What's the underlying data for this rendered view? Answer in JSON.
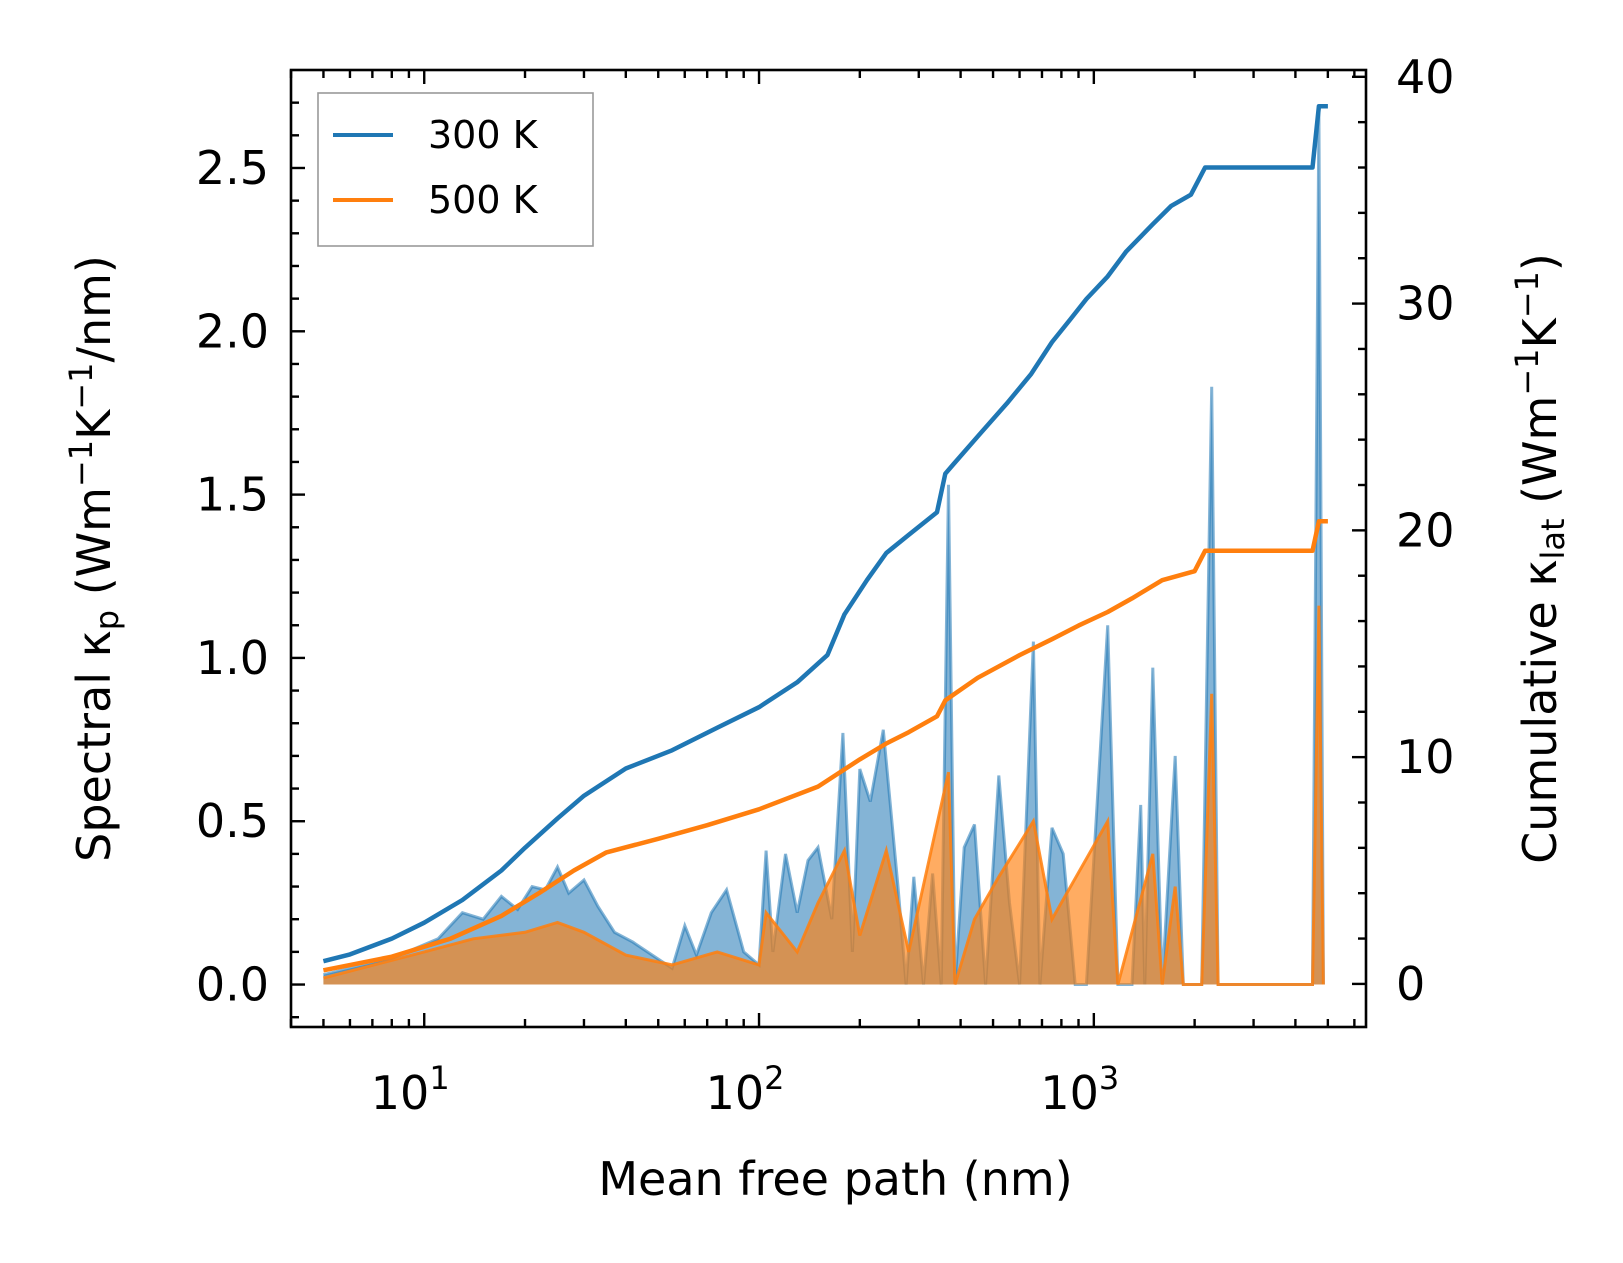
{
  "chart_data": {
    "type": "line",
    "x_scale": "log",
    "xlim": [
      4,
      6500
    ],
    "ylim_left": [
      -0.13,
      2.8
    ],
    "ylim_right": [
      -1.9,
      40.3
    ],
    "xlabel": "Mean free path (nm)",
    "ylabel_left": {
      "pre": "Spectral κ",
      "sub": "p",
      "mid": " (Wm",
      "sup1": "−1",
      "k": "K",
      "sup2": "−1",
      "post": "/nm)"
    },
    "ylabel_right": {
      "pre": "Cumulative κ",
      "sub": "lat",
      "mid": " (Wm",
      "sup1": "−1",
      "k": "K",
      "sup2": "−1",
      "post": ")"
    },
    "x_ticks": [
      {
        "value": 10,
        "base": "10",
        "exp": "1"
      },
      {
        "value": 100,
        "base": "10",
        "exp": "2"
      },
      {
        "value": 1000,
        "base": "10",
        "exp": "3"
      }
    ],
    "y_ticks_left": [
      "0.0",
      "0.5",
      "1.0",
      "1.5",
      "2.0",
      "2.5"
    ],
    "y_ticks_right": [
      "0",
      "10",
      "20",
      "30",
      "40"
    ],
    "legend": {
      "position": "upper-left",
      "entries": [
        "300 K",
        "500 K"
      ]
    },
    "series": [
      {
        "name": "300 K",
        "color": "#1f77b4",
        "cumulative": [
          [
            5,
            1.0
          ],
          [
            6,
            1.3
          ],
          [
            8,
            2.0
          ],
          [
            10,
            2.7
          ],
          [
            13,
            3.7
          ],
          [
            17,
            5.0
          ],
          [
            20,
            6.0
          ],
          [
            25,
            7.3
          ],
          [
            30,
            8.3
          ],
          [
            40,
            9.5
          ],
          [
            55,
            10.3
          ],
          [
            75,
            11.3
          ],
          [
            100,
            12.2
          ],
          [
            130,
            13.3
          ],
          [
            160,
            14.5
          ],
          [
            180,
            16.3
          ],
          [
            210,
            17.8
          ],
          [
            240,
            19.0
          ],
          [
            280,
            19.8
          ],
          [
            340,
            20.8
          ],
          [
            360,
            22.5
          ],
          [
            380,
            22.9
          ],
          [
            460,
            24.3
          ],
          [
            550,
            25.6
          ],
          [
            650,
            26.9
          ],
          [
            750,
            28.3
          ],
          [
            850,
            29.3
          ],
          [
            950,
            30.2
          ],
          [
            1100,
            31.2
          ],
          [
            1250,
            32.3
          ],
          [
            1500,
            33.5
          ],
          [
            1700,
            34.3
          ],
          [
            1950,
            34.8
          ],
          [
            2150,
            36.0
          ],
          [
            2500,
            36.0
          ],
          [
            4500,
            36.0
          ],
          [
            4700,
            38.7
          ],
          [
            5000,
            38.7
          ]
        ],
        "spectral": [
          [
            5,
            0.03
          ],
          [
            8,
            0.08
          ],
          [
            11,
            0.14
          ],
          [
            13,
            0.22
          ],
          [
            15,
            0.2
          ],
          [
            17,
            0.27
          ],
          [
            19,
            0.23
          ],
          [
            21,
            0.3
          ],
          [
            23,
            0.29
          ],
          [
            25,
            0.36
          ],
          [
            27,
            0.28
          ],
          [
            30,
            0.32
          ],
          [
            33,
            0.24
          ],
          [
            37,
            0.16
          ],
          [
            42,
            0.13
          ],
          [
            48,
            0.09
          ],
          [
            55,
            0.05
          ],
          [
            60,
            0.18
          ],
          [
            65,
            0.09
          ],
          [
            72,
            0.22
          ],
          [
            80,
            0.29
          ],
          [
            90,
            0.1
          ],
          [
            100,
            0.06
          ],
          [
            105,
            0.41
          ],
          [
            110,
            0.1
          ],
          [
            120,
            0.4
          ],
          [
            130,
            0.22
          ],
          [
            140,
            0.38
          ],
          [
            150,
            0.42
          ],
          [
            165,
            0.2
          ],
          [
            178,
            0.77
          ],
          [
            190,
            0.1
          ],
          [
            200,
            0.66
          ],
          [
            215,
            0.56
          ],
          [
            235,
            0.78
          ],
          [
            260,
            0.3
          ],
          [
            275,
            0.0
          ],
          [
            290,
            0.33
          ],
          [
            310,
            0.0
          ],
          [
            330,
            0.34
          ],
          [
            350,
            0.0
          ],
          [
            368,
            1.53
          ],
          [
            385,
            0.0
          ],
          [
            410,
            0.42
          ],
          [
            440,
            0.49
          ],
          [
            475,
            0.0
          ],
          [
            520,
            0.64
          ],
          [
            560,
            0.25
          ],
          [
            600,
            0.0
          ],
          [
            660,
            1.05
          ],
          [
            690,
            0.0
          ],
          [
            750,
            0.48
          ],
          [
            810,
            0.4
          ],
          [
            880,
            0.0
          ],
          [
            950,
            0.0
          ],
          [
            1100,
            1.1
          ],
          [
            1180,
            0.0
          ],
          [
            1300,
            0.0
          ],
          [
            1380,
            0.55
          ],
          [
            1420,
            0.0
          ],
          [
            1500,
            0.97
          ],
          [
            1600,
            0.0
          ],
          [
            1750,
            0.7
          ],
          [
            1850,
            0.0
          ],
          [
            2100,
            0.0
          ],
          [
            2250,
            1.83
          ],
          [
            2350,
            0.0
          ],
          [
            4500,
            0.0
          ],
          [
            4700,
            2.67
          ],
          [
            4850,
            0.0
          ]
        ]
      },
      {
        "name": "500 K",
        "color": "#ff7f0e",
        "cumulative": [
          [
            5,
            0.6
          ],
          [
            8,
            1.2
          ],
          [
            12,
            2.0
          ],
          [
            17,
            3.0
          ],
          [
            22,
            4.0
          ],
          [
            28,
            5.0
          ],
          [
            35,
            5.8
          ],
          [
            50,
            6.4
          ],
          [
            70,
            7.0
          ],
          [
            100,
            7.7
          ],
          [
            150,
            8.7
          ],
          [
            200,
            9.9
          ],
          [
            240,
            10.6
          ],
          [
            280,
            11.1
          ],
          [
            340,
            11.8
          ],
          [
            360,
            12.5
          ],
          [
            450,
            13.5
          ],
          [
            600,
            14.5
          ],
          [
            750,
            15.2
          ],
          [
            900,
            15.8
          ],
          [
            1100,
            16.4
          ],
          [
            1300,
            17.0
          ],
          [
            1600,
            17.8
          ],
          [
            2000,
            18.2
          ],
          [
            2150,
            19.1
          ],
          [
            4500,
            19.1
          ],
          [
            4700,
            20.4
          ],
          [
            5000,
            20.4
          ]
        ],
        "spectral": [
          [
            5,
            0.02
          ],
          [
            10,
            0.1
          ],
          [
            14,
            0.14
          ],
          [
            20,
            0.16
          ],
          [
            25,
            0.19
          ],
          [
            30,
            0.16
          ],
          [
            40,
            0.09
          ],
          [
            55,
            0.06
          ],
          [
            75,
            0.1
          ],
          [
            100,
            0.06
          ],
          [
            105,
            0.22
          ],
          [
            130,
            0.1
          ],
          [
            150,
            0.25
          ],
          [
            180,
            0.41
          ],
          [
            200,
            0.15
          ],
          [
            240,
            0.41
          ],
          [
            280,
            0.1
          ],
          [
            368,
            0.65
          ],
          [
            385,
            0.0
          ],
          [
            440,
            0.2
          ],
          [
            520,
            0.33
          ],
          [
            660,
            0.5
          ],
          [
            750,
            0.2
          ],
          [
            1100,
            0.5
          ],
          [
            1180,
            0.0
          ],
          [
            1500,
            0.4
          ],
          [
            1600,
            0.0
          ],
          [
            1750,
            0.3
          ],
          [
            1850,
            0.0
          ],
          [
            2100,
            0.0
          ],
          [
            2250,
            0.89
          ],
          [
            2350,
            0.0
          ],
          [
            4500,
            0.0
          ],
          [
            4700,
            1.16
          ],
          [
            4850,
            0.0
          ]
        ]
      }
    ]
  }
}
